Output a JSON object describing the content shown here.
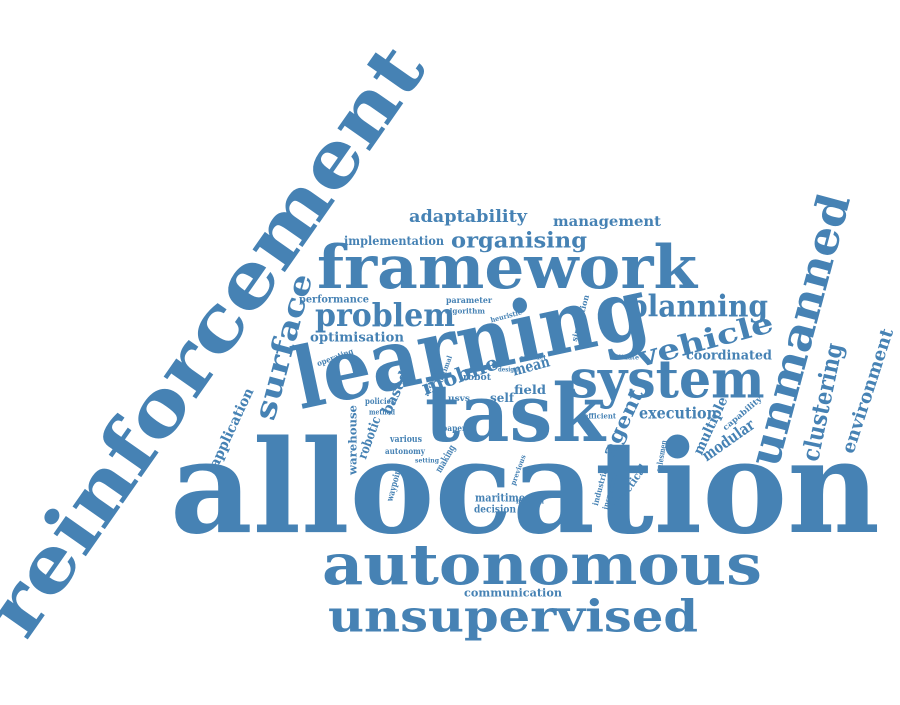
{
  "color": "#4682b4",
  "words": [
    {
      "text": "allocation"
    },
    {
      "text": "reinforcement"
    },
    {
      "text": "learning"
    },
    {
      "text": "task"
    },
    {
      "text": "autonomous"
    },
    {
      "text": "framework"
    },
    {
      "text": "system"
    },
    {
      "text": "unsupervised"
    },
    {
      "text": "unmanned"
    },
    {
      "text": "problem"
    },
    {
      "text": "planning"
    },
    {
      "text": "organising"
    },
    {
      "text": "vehicle"
    },
    {
      "text": "surface"
    },
    {
      "text": "mobile"
    },
    {
      "text": "adaptability"
    },
    {
      "text": "management"
    },
    {
      "text": "clustering"
    },
    {
      "text": "environment"
    },
    {
      "text": "agent"
    },
    {
      "text": "execution"
    },
    {
      "text": "coordinated"
    },
    {
      "text": "modular"
    },
    {
      "text": "multiple"
    },
    {
      "text": "application"
    },
    {
      "text": "optimisation"
    },
    {
      "text": "implementation"
    },
    {
      "text": "mean"
    },
    {
      "text": "field"
    },
    {
      "text": "self"
    },
    {
      "text": "based"
    },
    {
      "text": "performance"
    },
    {
      "text": "robotic"
    },
    {
      "text": "warehouse"
    },
    {
      "text": "maritime"
    },
    {
      "text": "decision"
    },
    {
      "text": "communication"
    },
    {
      "text": "paper"
    },
    {
      "text": "various"
    },
    {
      "text": "autonomy"
    },
    {
      "text": "policies"
    },
    {
      "text": "method"
    },
    {
      "text": "making"
    },
    {
      "text": "practical"
    },
    {
      "text": "industrial"
    },
    {
      "text": "inspection"
    },
    {
      "text": "salesmen"
    },
    {
      "text": "capability"
    },
    {
      "text": "efficient"
    },
    {
      "text": "parameter"
    },
    {
      "text": "algorithm"
    },
    {
      "text": "heuristic"
    },
    {
      "text": "simulation"
    },
    {
      "text": "robot"
    },
    {
      "text": "usvs"
    },
    {
      "text": "operating"
    },
    {
      "text": "optimal"
    },
    {
      "text": "account"
    },
    {
      "text": "design"
    },
    {
      "text": "conduct"
    },
    {
      "text": "validate"
    },
    {
      "text": "waypoint"
    },
    {
      "text": "setting"
    },
    {
      "text": "previous"
    },
    {
      "text": "mission"
    }
  ]
}
